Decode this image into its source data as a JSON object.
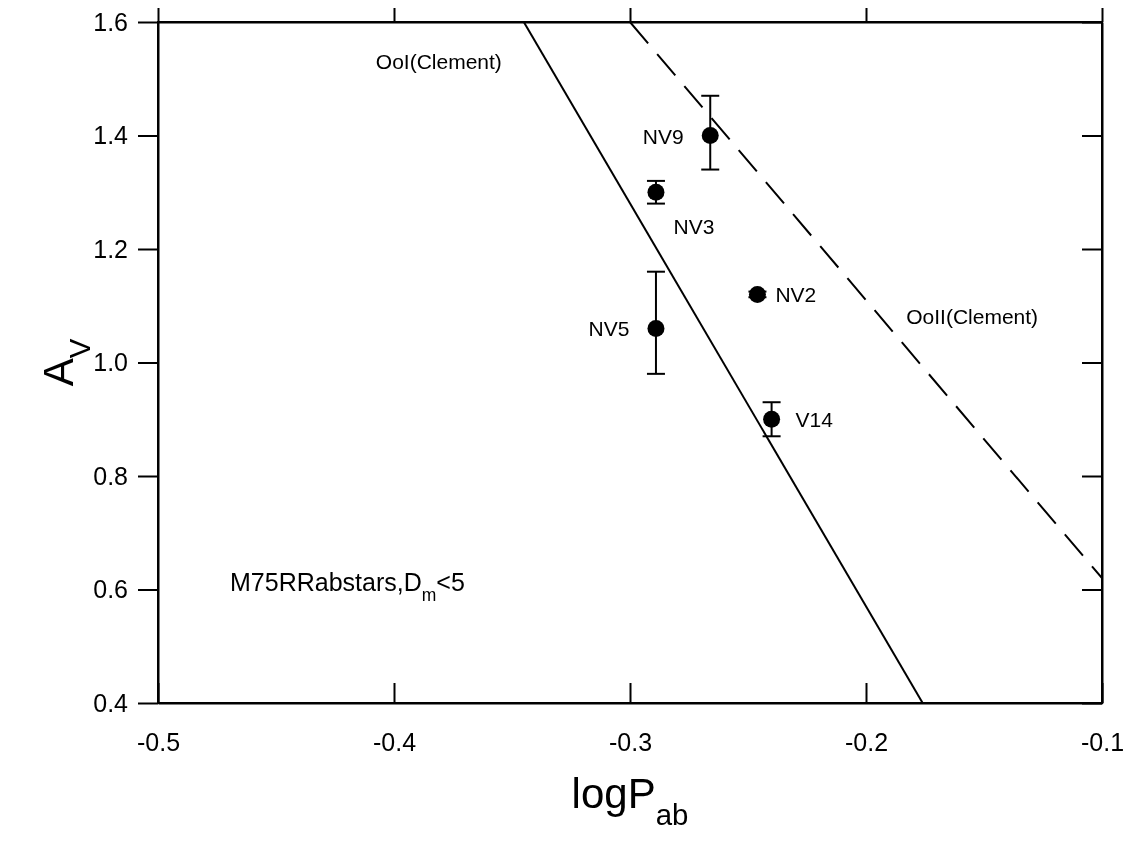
{
  "chart_data": {
    "type": "scatter",
    "xlabel": "logP$_{ab}$",
    "ylabel": "A$_{V}$",
    "xlim": [
      -0.5,
      -0.1
    ],
    "xticks": [
      -0.5,
      -0.4,
      -0.3,
      -0.2,
      -0.1
    ],
    "ylim": [
      0.4,
      1.6
    ],
    "yticks": [
      0.4,
      0.6,
      0.8,
      {
        "value": 1,
        "label": "1.0"
      },
      1.2,
      1.4,
      1.6
    ],
    "grid": false,
    "series": [
      {
        "color": "#000000",
        "marker": "circle",
        "x": [
          -0.266,
          -0.289,
          -0.246,
          -0.289,
          -0.24
        ],
        "values": [
          1.4,
          1.3,
          1.12,
          1.06,
          0.9
        ],
        "errors": [
          [
            1.34,
            1.47
          ],
          [
            1.28,
            1.32
          ],
          [
            1.115,
            1.125
          ],
          [
            0.98,
            1.16
          ],
          [
            0.87,
            0.93
          ]
        ]
      },
      {
        "type": "line",
        "name": "OoI(Clement)",
        "color": "#000000",
        "line_style": "solid",
        "marker": "none",
        "x": [
          -0.345,
          -0.176
        ],
        "values": [
          1.6,
          0.4
        ]
      },
      {
        "type": "line",
        "name": "OoII(Clement)",
        "color": "#000000",
        "line_style": "dashed",
        "marker": "none",
        "x": [
          -0.3,
          -0.1
        ],
        "values": [
          1.6,
          0.62
        ]
      }
    ],
    "annotations": [
      {
        "text": "NV9",
        "x": -0.266,
        "y": 1.4
      },
      {
        "text": "NV3",
        "x": -0.289,
        "y": 1.3
      },
      {
        "text": "NV2",
        "x": -0.246,
        "y": 1.12
      },
      {
        "text": "NV5",
        "x": -0.289,
        "y": 1.06
      },
      {
        "text": "V14",
        "x": -0.24,
        "y": 0.9
      },
      "M75RRabstars,D$_{m}$<5"
    ]
  }
}
